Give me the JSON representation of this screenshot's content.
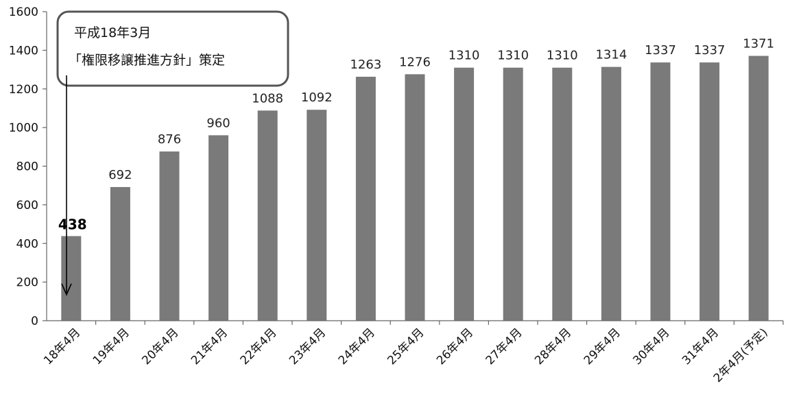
{
  "chart_data": {
    "type": "bar",
    "title": "",
    "xlabel": "",
    "ylabel": "",
    "ylim": [
      0,
      1600
    ],
    "yticks": [
      0,
      200,
      400,
      600,
      800,
      1000,
      1200,
      1400,
      1600
    ],
    "grid": false,
    "legend": "none",
    "categories": [
      "18年4月",
      "19年4月",
      "20年4月",
      "21年4月",
      "22年4月",
      "23年4月",
      "24年4月",
      "25年4月",
      "26年4月",
      "27年4月",
      "28年4月",
      "29年4月",
      "30年4月",
      "31年4月",
      "2年4月(予定)"
    ],
    "values": [
      438,
      692,
      876,
      960,
      1088,
      1092,
      1263,
      1276,
      1310,
      1310,
      1310,
      1314,
      1337,
      1337,
      1371
    ],
    "bar_color": "#7a7a7a",
    "annotation": {
      "lines": [
        "平成18年3月",
        "「権限移譲推進方針」策定"
      ],
      "points_to": "18年4月"
    }
  }
}
